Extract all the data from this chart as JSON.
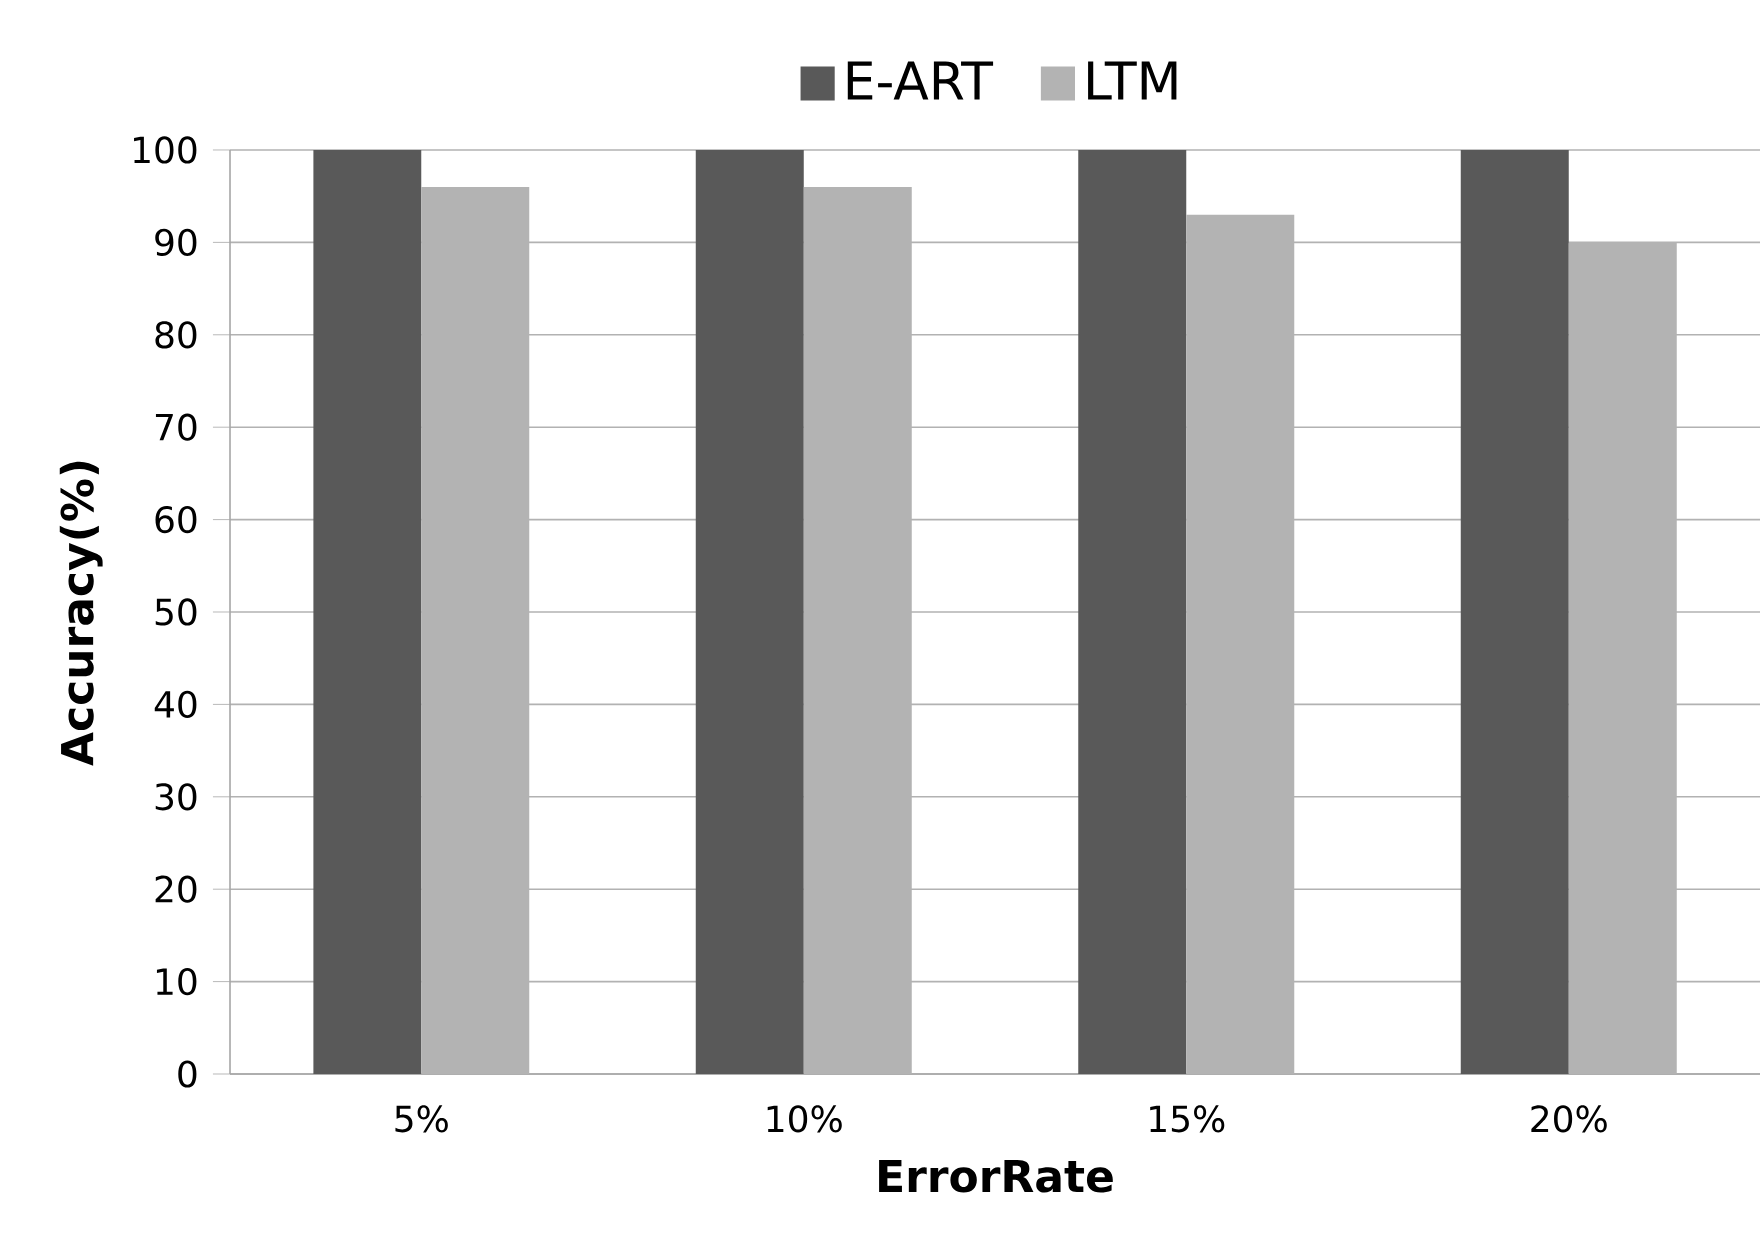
{
  "chart_data": {
    "type": "bar",
    "xlabel": "ErrorRate",
    "ylabel": "Accuracy(%)",
    "categories": [
      "5%",
      "10%",
      "15%",
      "20%"
    ],
    "series": [
      {
        "name": "E-ART",
        "color": "#595959",
        "values": [
          100,
          100,
          100,
          100
        ]
      },
      {
        "name": "LTM",
        "color": "#b3b3b3",
        "values": [
          96,
          96,
          93,
          90
        ]
      }
    ],
    "ylim": [
      0,
      100
    ],
    "yticks": [
      0,
      10,
      20,
      30,
      40,
      50,
      60,
      70,
      80,
      90,
      100
    ],
    "grid": "y",
    "legend": "top"
  }
}
